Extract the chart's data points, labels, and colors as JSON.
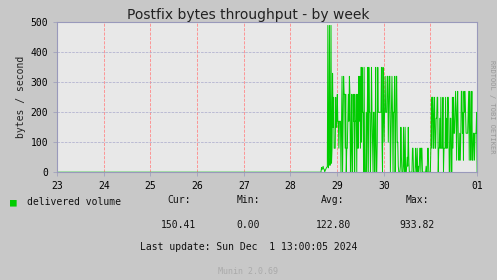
{
  "title": "Postfix bytes throughput - by week",
  "ylabel": "bytes / second",
  "background_color": "#c8c8c8",
  "plot_bg_color": "#e8e8e8",
  "line_color": "#00cc00",
  "ylim": [
    0,
    500
  ],
  "y_ticks": [
    0,
    100,
    200,
    300,
    400,
    500
  ],
  "x_start": 23.0,
  "x_end": 32.0,
  "x_tick_positions": [
    23,
    24,
    25,
    26,
    27,
    28,
    29,
    30,
    32
  ],
  "x_tick_labels": [
    "23",
    "24",
    "25",
    "26",
    "27",
    "28",
    "29",
    "30",
    "01"
  ],
  "vline_positions": [
    23,
    24,
    25,
    26,
    27,
    28,
    29,
    30,
    31,
    32
  ],
  "cur": "150.41",
  "min_val": "0.00",
  "avg": "122.80",
  "max_val": "933.82",
  "last_update": "Last update: Sun Dec  1 13:00:05 2024",
  "legend_label": "delivered volume",
  "munin_version": "Munin 2.0.69",
  "side_label": "RRDTOOL / TOBI OETIKER",
  "title_fontsize": 10,
  "label_fontsize": 7,
  "tick_fontsize": 7,
  "side_fontsize": 5,
  "munin_fontsize": 6
}
